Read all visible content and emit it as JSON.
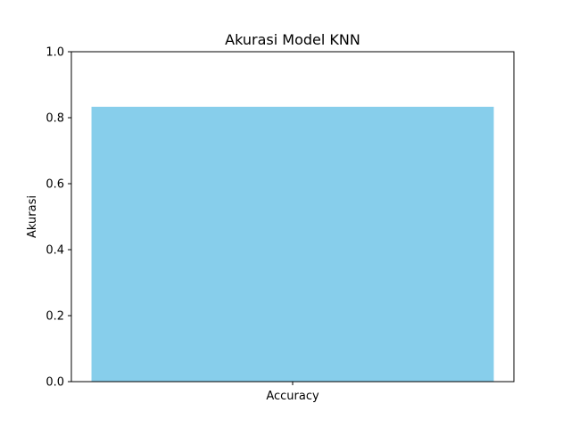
{
  "chart_data": {
    "type": "bar",
    "title": "Akurasi Model KNN",
    "xlabel": "",
    "ylabel": "Akurasi",
    "categories": [
      "Accuracy"
    ],
    "values": [
      0.833
    ],
    "ylim": [
      0,
      1.0
    ],
    "yticks": [
      "0.0",
      "0.2",
      "0.4",
      "0.6",
      "0.8",
      "1.0"
    ],
    "grid": false,
    "legend": "none",
    "bar_color": "#87CEEB"
  }
}
